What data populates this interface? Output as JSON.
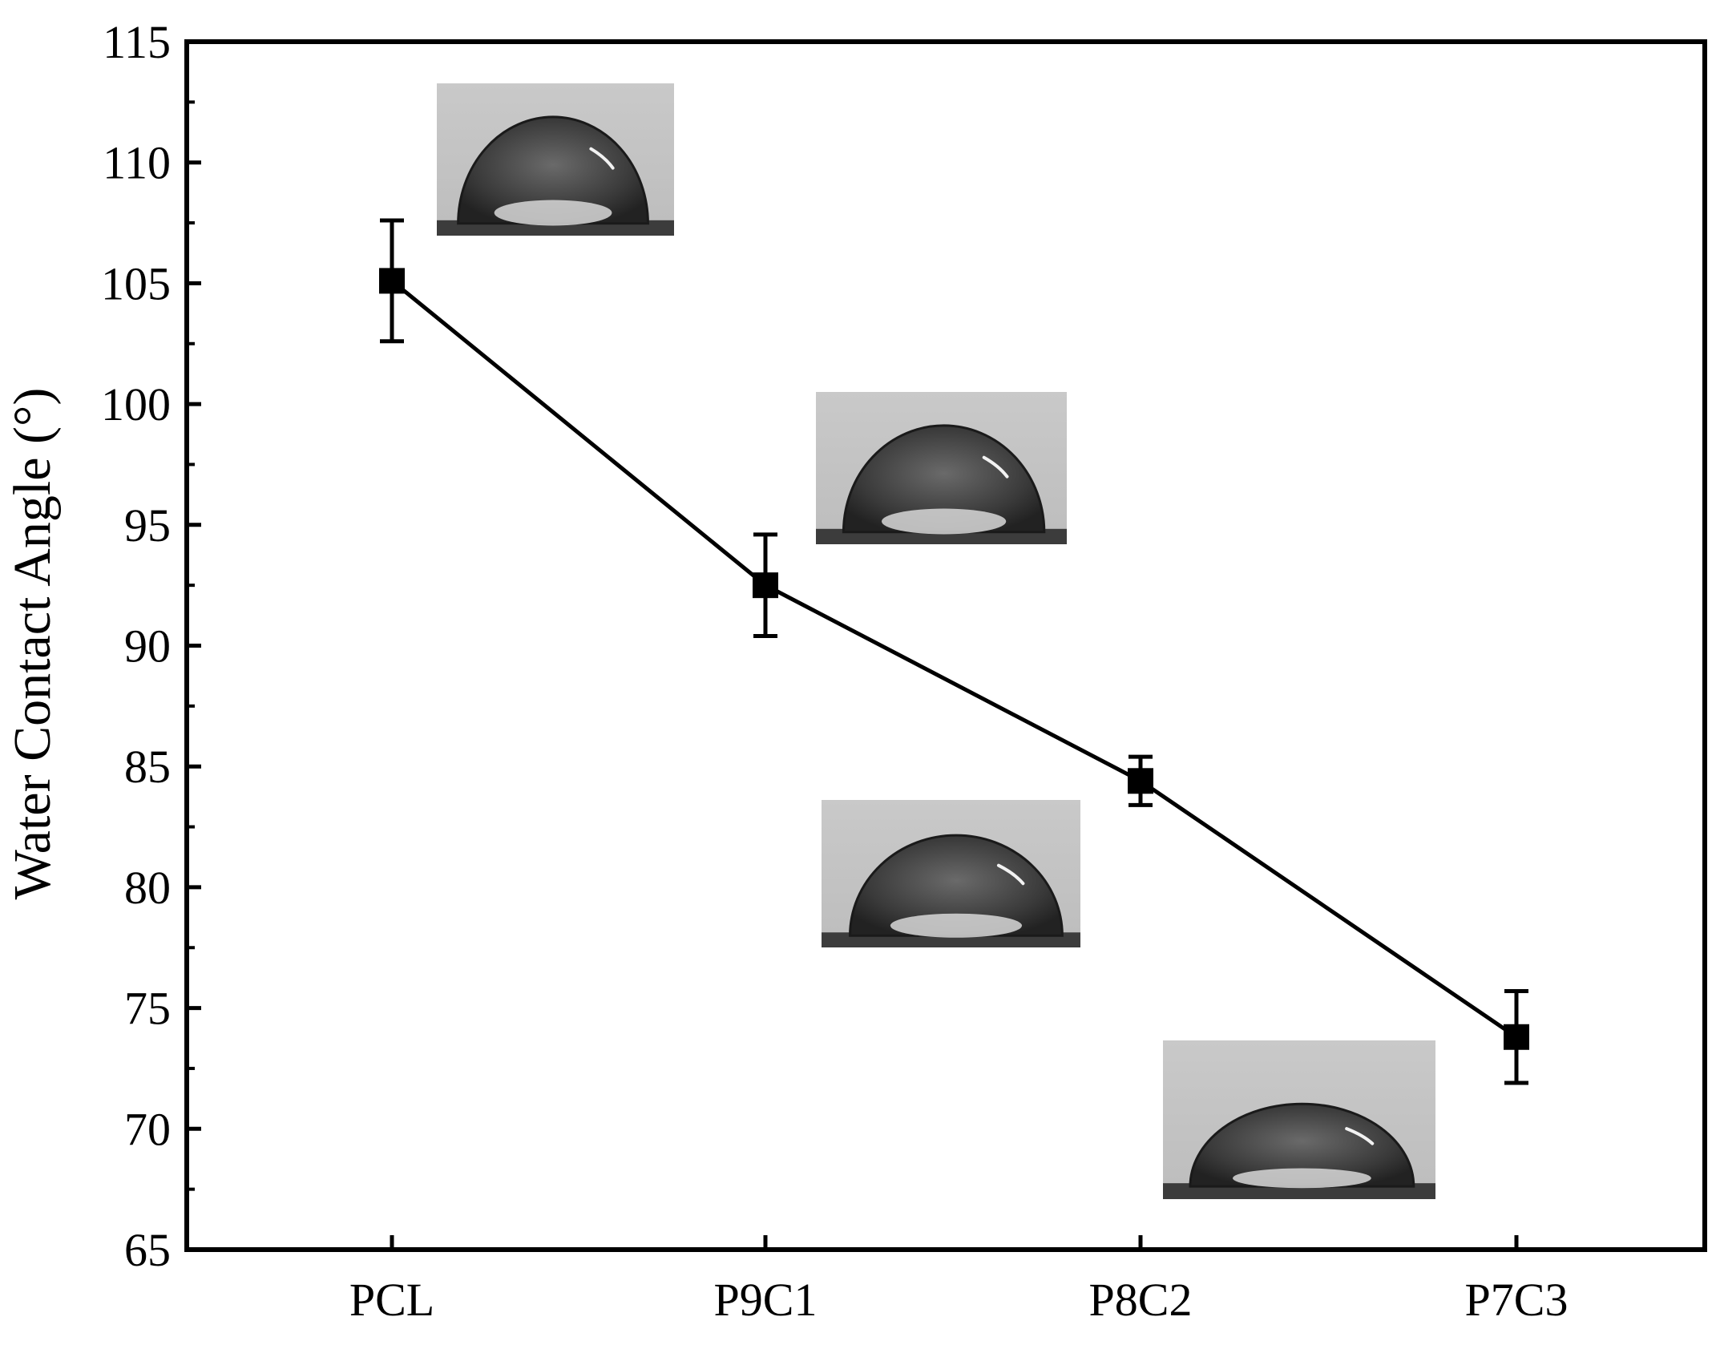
{
  "chart_data": {
    "type": "line",
    "title": "",
    "xlabel": "",
    "ylabel": "Water Contact Angle (°)",
    "categories": [
      "PCL",
      "P9C1",
      "P8C2",
      "P7C3"
    ],
    "series": [
      {
        "values": [
          105.1,
          92.5,
          84.4,
          73.8
        ],
        "error": [
          2.5,
          2.1,
          1.0,
          1.9
        ],
        "marker": "square",
        "color": "#000000"
      }
    ],
    "ylim": [
      65,
      115
    ],
    "yticks": [
      65,
      70,
      75,
      80,
      85,
      90,
      95,
      100,
      105,
      110,
      115
    ],
    "grid": false,
    "legend": "none",
    "insets": [
      {
        "category": "PCL",
        "content": "water-droplet-photo"
      },
      {
        "category": "P9C1",
        "content": "water-droplet-photo"
      },
      {
        "category": "P8C2",
        "content": "water-droplet-photo"
      },
      {
        "category": "P7C3",
        "content": "water-droplet-photo"
      }
    ]
  }
}
